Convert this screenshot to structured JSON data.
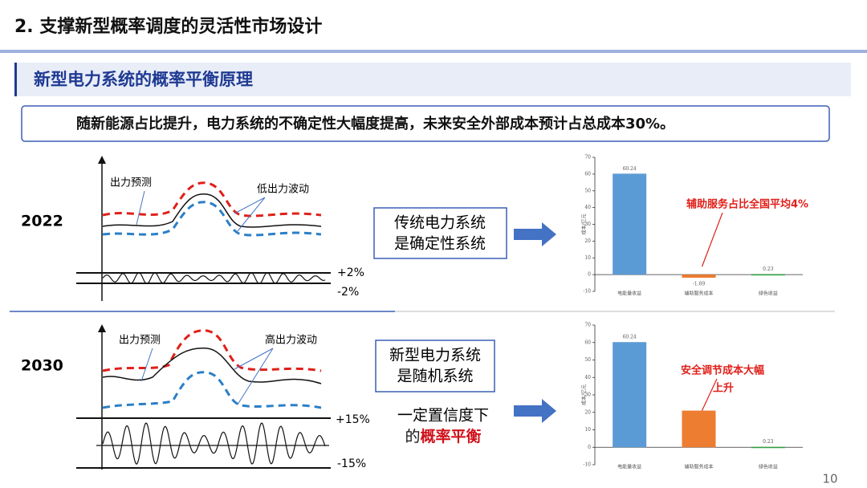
{
  "header": {
    "title": "2. 支撑新型概率调度的灵活性市场设计"
  },
  "section_title": "新型电力系统的概率平衡原理",
  "banner": "随新能源占比提升，电力系统的不确定性大幅度提高，未来安全外部成本预计占总成本30%。",
  "page_number": "10",
  "rows": [
    {
      "year": "2022",
      "forecast_label": "出力预测",
      "fluctuation_label": "低出力波动",
      "band_upper": "+2%",
      "band_lower": "-2%",
      "system_box": [
        "传统电力系统",
        "是确定性系统"
      ]
    },
    {
      "year": "2030",
      "forecast_label": "出力预测",
      "fluctuation_label": "高出力波动",
      "band_upper": "+15%",
      "band_lower": "-15%",
      "system_box": [
        "新型电力系统",
        "是随机系统"
      ],
      "note_line1": "一定置信度下",
      "note_prefix": "的",
      "note_emphasis": "概率平衡"
    }
  ],
  "chart_data": [
    {
      "type": "bar",
      "y_label": "成本/亿元",
      "categories": [
        "电能量收益",
        "辅助服务成本",
        "绿色收益"
      ],
      "values": [
        60.24,
        -1.89,
        0.23
      ],
      "colors": [
        "#5b9bd5",
        "#ed7d31",
        "#2e9e3e"
      ],
      "ylim": [
        -10,
        70
      ],
      "yticks": [
        -10,
        0,
        10,
        20,
        30,
        40,
        50,
        60,
        70
      ],
      "annotation": [
        "辅助服务占比全国平均4%"
      ]
    },
    {
      "type": "bar",
      "y_label": "成本/亿元",
      "categories": [
        "电能量收益",
        "辅助服务成本",
        "绿色收益"
      ],
      "values": [
        60.24,
        21,
        0.23
      ],
      "value_labels": [
        "60.24",
        null,
        "0.23"
      ],
      "colors": [
        "#5b9bd5",
        "#ed7d31",
        "#2e9e3e"
      ],
      "ylim": [
        -10,
        70
      ],
      "yticks": [
        -10,
        0,
        10,
        20,
        30,
        40,
        50,
        60,
        70
      ],
      "annotation": [
        "安全调节成本大幅",
        "上升"
      ]
    }
  ]
}
